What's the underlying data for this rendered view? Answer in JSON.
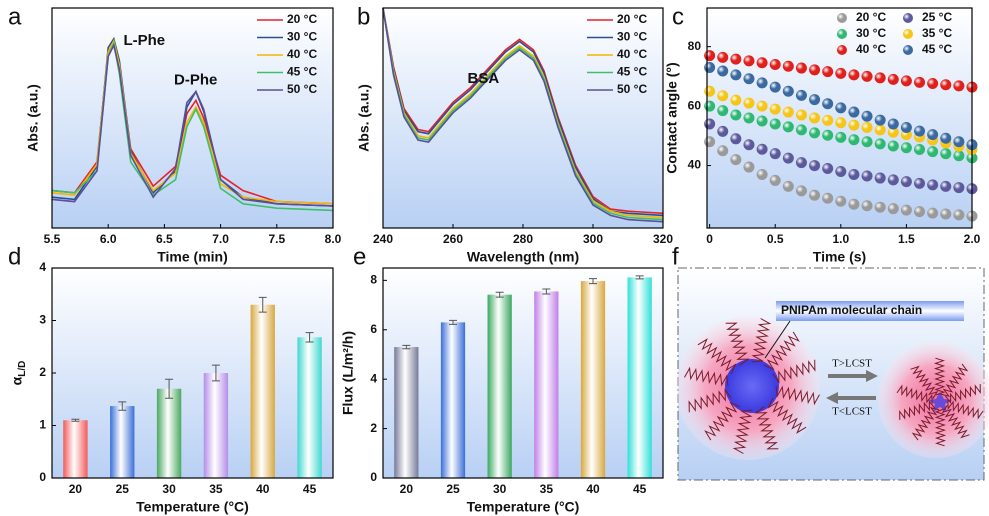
{
  "chart_data": [
    {
      "type": "line",
      "panel": "a",
      "x_label": "Time (min)",
      "y_label": "Abs. (a.u.)",
      "annotations": [
        "L-Phe",
        "D-Phe"
      ],
      "xlim": [
        5.5,
        8.0
      ],
      "xticks": [
        5.5,
        {
          "value": 6,
          "label": "6.0"
        },
        6.5,
        {
          "value": 7,
          "label": "7.0"
        },
        7.5,
        {
          "value": 8,
          "label": "8.0"
        }
      ],
      "ylim": [
        0,
        1
      ],
      "legend": "upper right",
      "x": [
        5.5,
        5.7,
        5.9,
        6.0,
        6.05,
        6.1,
        6.2,
        6.4,
        6.6,
        6.7,
        6.78,
        6.85,
        7.0,
        7.2,
        7.5,
        8.0
      ],
      "series": [
        {
          "name": "20 °C",
          "color": "#e8202a",
          "values": [
            0.17,
            0.16,
            0.3,
            0.8,
            0.84,
            0.74,
            0.36,
            0.19,
            0.28,
            0.52,
            0.58,
            0.5,
            0.24,
            0.17,
            0.12,
            0.11
          ]
        },
        {
          "name": "30 °C",
          "color": "#2a4f8f",
          "values": [
            0.14,
            0.13,
            0.28,
            0.82,
            0.86,
            0.76,
            0.35,
            0.16,
            0.26,
            0.55,
            0.62,
            0.53,
            0.22,
            0.14,
            0.11,
            0.1
          ]
        },
        {
          "name": "40 °C",
          "color": "#f2b600",
          "values": [
            0.16,
            0.15,
            0.29,
            0.8,
            0.85,
            0.74,
            0.34,
            0.17,
            0.25,
            0.48,
            0.55,
            0.48,
            0.2,
            0.14,
            0.12,
            0.11
          ]
        },
        {
          "name": "45 °C",
          "color": "#3ec06a",
          "values": [
            0.17,
            0.16,
            0.26,
            0.78,
            0.84,
            0.7,
            0.3,
            0.15,
            0.22,
            0.46,
            0.54,
            0.46,
            0.18,
            0.11,
            0.09,
            0.08
          ]
        },
        {
          "name": "50 °C",
          "color": "#5a4f9a",
          "values": [
            0.13,
            0.12,
            0.26,
            0.78,
            0.83,
            0.72,
            0.33,
            0.14,
            0.27,
            0.57,
            0.62,
            0.54,
            0.22,
            0.13,
            0.11,
            0.1
          ]
        }
      ]
    },
    {
      "type": "line",
      "panel": "b",
      "x_label": "Wavelength (nm)",
      "y_label": "Abs. (a.u.)",
      "annotations": [
        "BSA"
      ],
      "xlim": [
        240,
        320
      ],
      "xticks": [
        240,
        260,
        280,
        300,
        320
      ],
      "ylim": [
        -0.05,
        1.0
      ],
      "legend": "upper right",
      "x": [
        240,
        243,
        246,
        250,
        253,
        256,
        260,
        265,
        270,
        275,
        279,
        283,
        286,
        290,
        295,
        300,
        305,
        310,
        320
      ],
      "series": [
        {
          "name": "20 °C",
          "color": "#e8202a",
          "values": [
            1.0,
            0.72,
            0.52,
            0.42,
            0.41,
            0.47,
            0.55,
            0.62,
            0.71,
            0.8,
            0.85,
            0.8,
            0.7,
            0.48,
            0.25,
            0.1,
            0.04,
            0.03,
            0.02
          ]
        },
        {
          "name": "30 °C",
          "color": "#2a4f8f",
          "values": [
            1.0,
            0.71,
            0.51,
            0.41,
            0.4,
            0.46,
            0.54,
            0.61,
            0.7,
            0.79,
            0.84,
            0.79,
            0.69,
            0.47,
            0.24,
            0.09,
            0.03,
            0.02,
            0.01
          ]
        },
        {
          "name": "40 °C",
          "color": "#f2b600",
          "values": [
            1.0,
            0.7,
            0.5,
            0.39,
            0.38,
            0.44,
            0.52,
            0.59,
            0.68,
            0.77,
            0.82,
            0.77,
            0.67,
            0.45,
            0.22,
            0.08,
            0.03,
            0.01,
            0.0
          ]
        },
        {
          "name": "45 °C",
          "color": "#3ec06a",
          "values": [
            1.0,
            0.69,
            0.49,
            0.38,
            0.37,
            0.43,
            0.51,
            0.58,
            0.67,
            0.76,
            0.81,
            0.76,
            0.66,
            0.44,
            0.21,
            0.07,
            0.02,
            0.0,
            -0.01
          ]
        },
        {
          "name": "50 °C",
          "color": "#5a4f9a",
          "values": [
            1.0,
            0.68,
            0.48,
            0.37,
            0.36,
            0.42,
            0.5,
            0.57,
            0.66,
            0.75,
            0.8,
            0.75,
            0.65,
            0.43,
            0.2,
            0.06,
            0.01,
            -0.01,
            -0.02
          ]
        }
      ]
    },
    {
      "type": "scatter",
      "panel": "c",
      "x_label": "Time (s)",
      "y_label": "Contact angle (°)",
      "xlim": [
        -0.02,
        2.0
      ],
      "xticks": [
        0,
        0.5,
        {
          "value": 1,
          "label": "1.0"
        },
        1.5,
        {
          "value": 2,
          "label": "2.0"
        }
      ],
      "ylim": [
        19,
        93
      ],
      "yticks": [
        40,
        60,
        80
      ],
      "legend": "upper right",
      "x": [
        0,
        0.1,
        0.2,
        0.3,
        0.4,
        0.5,
        0.6,
        0.7,
        0.8,
        0.9,
        1.0,
        1.1,
        1.2,
        1.3,
        1.4,
        1.5,
        1.6,
        1.7,
        1.8,
        1.9,
        2.0
      ],
      "series": [
        {
          "name": "20 °C",
          "color": "#9a9a9a",
          "values": [
            48,
            45,
            42,
            39.5,
            37,
            35,
            33,
            31.5,
            30,
            29,
            28,
            27,
            26.5,
            26,
            25.5,
            25,
            24.5,
            24,
            23.7,
            23.4,
            23
          ]
        },
        {
          "name": "25 °C",
          "color": "#5c5a9c",
          "values": [
            54,
            51.5,
            49,
            47,
            45.5,
            44,
            42.5,
            41,
            40,
            39,
            38,
            37,
            36.5,
            35.8,
            35.2,
            34.6,
            34,
            33.5,
            33,
            32.6,
            32.2
          ]
        },
        {
          "name": "30 °C",
          "color": "#2eb872",
          "values": [
            60,
            58.5,
            57,
            56,
            55,
            54,
            53,
            52,
            51,
            50.2,
            49.5,
            48.7,
            48,
            47.3,
            46.6,
            46,
            45.4,
            44.7,
            44,
            43.3,
            42.6
          ]
        },
        {
          "name": "35 °C",
          "color": "#f5c518",
          "values": [
            65,
            63.5,
            62,
            61,
            60,
            59,
            58,
            57,
            56,
            55.2,
            54.4,
            53.6,
            52.8,
            52,
            51.2,
            50.4,
            49.6,
            48.6,
            47.6,
            46.5,
            45.4
          ]
        },
        {
          "name": "40 °C",
          "color": "#e0201c",
          "values": [
            77,
            76.4,
            75.8,
            75.2,
            74.6,
            74,
            73.4,
            72.8,
            72.2,
            71.6,
            71,
            70.5,
            70,
            69.5,
            69,
            68.5,
            68,
            67.6,
            67.2,
            66.8,
            66.4
          ]
        },
        {
          "name": "45 °C",
          "color": "#3a6aa0",
          "values": [
            73,
            71.8,
            70.5,
            69.2,
            67.8,
            66.4,
            65,
            63.6,
            62.2,
            60.8,
            59.4,
            58,
            56.6,
            55.3,
            54,
            52.8,
            51.6,
            50.4,
            49.2,
            48,
            47
          ]
        }
      ]
    },
    {
      "type": "bar",
      "panel": "d",
      "x_label": "Temperature (°C)",
      "y_label": "α",
      "y_label_subscript": "L/D",
      "categories": [
        "20",
        "25",
        "30",
        "35",
        "40",
        "45"
      ],
      "values": [
        1.1,
        1.37,
        1.7,
        2.0,
        3.3,
        2.68
      ],
      "errors": [
        0.02,
        0.08,
        0.18,
        0.15,
        0.14,
        0.09
      ],
      "colors": [
        "#f25a5a",
        "#3a6fd8",
        "#4aa860",
        "#b38ee8",
        "#d8a840",
        "#40d8d0"
      ],
      "ylim": [
        0,
        4
      ],
      "yticks": [
        0,
        1,
        2,
        3,
        4
      ]
    },
    {
      "type": "bar",
      "panel": "e",
      "x_label": "Temperature (°C)",
      "y_label": "Flux (L/m²/h)",
      "categories": [
        "20",
        "25",
        "30",
        "35",
        "40",
        "45"
      ],
      "values": [
        5.3,
        6.3,
        7.42,
        7.55,
        7.97,
        8.12
      ],
      "errors": [
        0.07,
        0.08,
        0.1,
        0.1,
        0.1,
        0.06
      ],
      "colors": [
        "#777a9a",
        "#3a6fd8",
        "#3aa860",
        "#c080e8",
        "#d8a840",
        "#30e0d8"
      ],
      "ylim": [
        0,
        8.5
      ],
      "yticks": [
        0,
        2,
        4,
        6,
        8
      ]
    }
  ],
  "diagram": {
    "panel": "f",
    "label": "PNIPAm molecular chain",
    "forward": "T>LCST",
    "backward": "T<LCST"
  }
}
